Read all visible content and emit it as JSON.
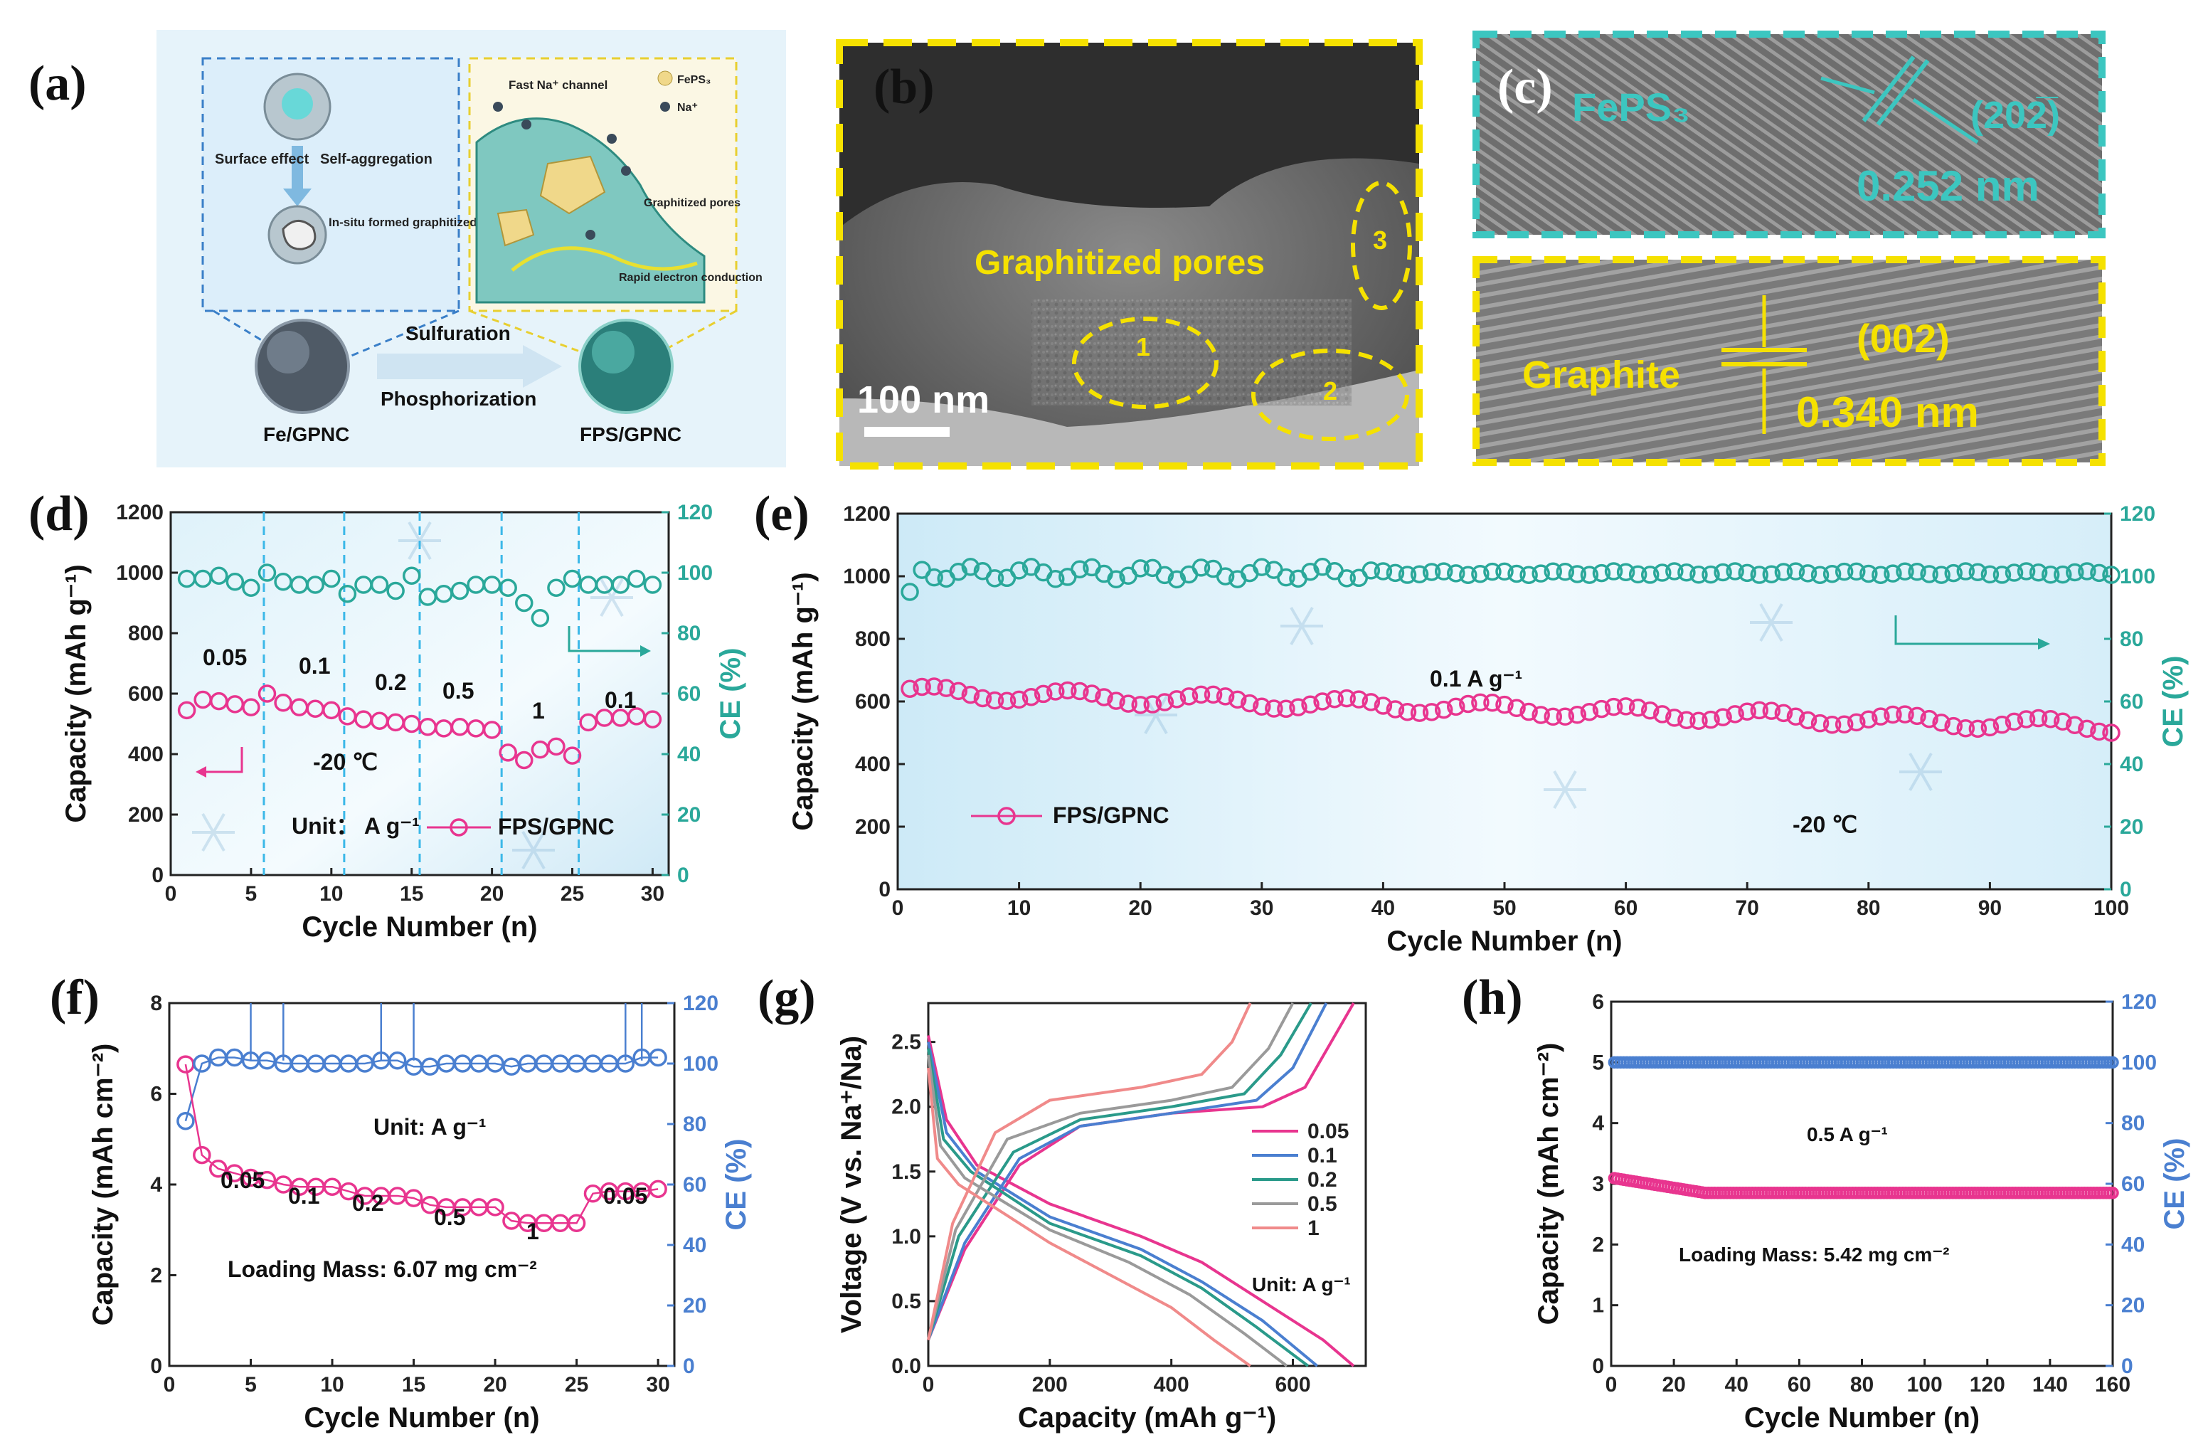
{
  "panel_labels": [
    "(a)",
    "(b)",
    "(c)",
    "(d)",
    "(e)",
    "(f)",
    "(g)",
    "(h)"
  ],
  "schematic": {
    "left_box": {
      "surface_effect": "Surface effect",
      "self_aggregation": "Self-aggregation",
      "in_situ": "In-situ formed graphitized pores"
    },
    "right_box": {
      "fast_channel": "Fast Na⁺ channel",
      "legend_feps3": "FePS₃",
      "legend_na": "Na⁺",
      "graphitized_pores": "Graphitized pores",
      "rapid_conduction": "Rapid electron conduction"
    },
    "arrow_top": "Sulfuration",
    "arrow_bottom": "Phosphorization",
    "left_label": "Fe/GPNC",
    "right_label": "FPS/GPNC"
  },
  "tem_b": {
    "text": "Graphitized pores",
    "scale": "100 nm",
    "regions": [
      "1",
      "2",
      "3"
    ]
  },
  "hrtem_c": {
    "top": {
      "phase": "FePS₃",
      "plane": "(20̅₂̅)",
      "plane_display": "(202̅)",
      "spacing": "0.252 nm"
    },
    "bottom": {
      "phase": "Graphite",
      "plane": "(002)",
      "spacing": "0.340 nm"
    }
  },
  "colors": {
    "capacity": "#e8358f",
    "ce_teal": "#2aa89a",
    "ce_blue": "#4a7fd0",
    "dash_yellow": "#f5e100",
    "dash_teal": "#3cc6c0",
    "dash_cyan": "#3bb8e8"
  },
  "chart_data": [
    {
      "panel": "(d)",
      "type": "scatter",
      "xlabel": "Cycle Number (n)",
      "ylabel": "Capacity (mAh g⁻¹)",
      "y2label": "CE (%)",
      "xlim": [
        0,
        31
      ],
      "ylim": [
        0,
        1200
      ],
      "y2lim": [
        0,
        120
      ],
      "xticks": [
        "0",
        "5",
        "10",
        "15",
        "20",
        "25",
        "30"
      ],
      "yticks": [
        "0",
        "200",
        "400",
        "600",
        "800",
        "1000",
        "1200"
      ],
      "y2ticks": [
        "0",
        "20",
        "40",
        "60",
        "80",
        "100",
        "120"
      ],
      "annotations": [
        "0.05",
        "0.1",
        "0.2",
        "0.5",
        "1",
        "0.1",
        "-20 ℃",
        "Unit： A g⁻¹"
      ],
      "legend": "FPS/GPNC",
      "rate_boundaries": [
        5.8,
        10.8,
        15.5,
        20.6,
        25.4
      ],
      "series": [
        {
          "name": "FPS/GPNC",
          "axis": "left",
          "x": [
            1,
            2,
            3,
            4,
            5,
            6,
            7,
            8,
            9,
            10,
            11,
            12,
            13,
            14,
            15,
            16,
            17,
            18,
            19,
            20,
            21,
            22,
            23,
            24,
            25,
            26,
            27,
            28,
            29,
            30
          ],
          "values": [
            545,
            580,
            575,
            565,
            555,
            600,
            570,
            555,
            550,
            545,
            525,
            515,
            510,
            505,
            500,
            490,
            485,
            490,
            485,
            480,
            405,
            380,
            415,
            425,
            395,
            505,
            520,
            520,
            525,
            515
          ]
        },
        {
          "axis": "right",
          "x": [
            1,
            2,
            3,
            4,
            5,
            6,
            7,
            8,
            9,
            10,
            11,
            12,
            13,
            14,
            15,
            16,
            17,
            18,
            19,
            20,
            21,
            22,
            23,
            24,
            25,
            26,
            27,
            28,
            29,
            30
          ],
          "values": [
            98,
            98,
            99,
            97,
            95,
            100,
            97,
            96,
            96,
            98,
            93,
            96,
            96,
            94,
            99,
            92,
            93,
            94,
            96,
            96,
            95,
            90,
            85,
            95,
            98,
            96,
            96,
            96,
            98,
            96
          ]
        }
      ]
    },
    {
      "panel": "(e)",
      "type": "scatter",
      "xlabel": "Cycle Number (n)",
      "ylabel": "Capacity (mAh g⁻¹)",
      "y2label": "CE (%)",
      "xlim": [
        0,
        100
      ],
      "ylim": [
        0,
        1200
      ],
      "y2lim": [
        0,
        120
      ],
      "xticks": [
        "0",
        "10",
        "20",
        "30",
        "40",
        "50",
        "60",
        "70",
        "80",
        "90",
        "100"
      ],
      "yticks": [
        "0",
        "200",
        "400",
        "600",
        "800",
        "1000",
        "1200"
      ],
      "y2ticks": [
        "0",
        "20",
        "40",
        "60",
        "80",
        "100",
        "120"
      ],
      "annotations": [
        "0.1 A g⁻¹",
        "-20 ℃"
      ],
      "legend": "FPS/GPNC",
      "series": [
        {
          "name": "FPS/GPNC",
          "axis": "left",
          "x_start": 1,
          "x_end": 100,
          "start": 630,
          "end": 520
        },
        {
          "axis": "right",
          "x_start": 1,
          "x_end": 100,
          "start": 95,
          "end": 102
        }
      ]
    },
    {
      "panel": "(f)",
      "type": "scatter",
      "xlabel": "Cycle Number (n)",
      "ylabel": "Capacity (mAh cm⁻²)",
      "y2label": "CE (%)",
      "xlim": [
        0,
        31
      ],
      "ylim": [
        0,
        8
      ],
      "y2lim": [
        0,
        120
      ],
      "xticks": [
        "0",
        "5",
        "10",
        "15",
        "20",
        "25",
        "30"
      ],
      "yticks": [
        "0",
        "2",
        "4",
        "6",
        "8"
      ],
      "y2ticks": [
        "0",
        "20",
        "40",
        "60",
        "80",
        "100",
        "120"
      ],
      "annotations": [
        "Unit: A g⁻¹",
        "0.05",
        "0.1",
        "0.2",
        "0.5",
        "1",
        "0.05",
        "Loading Mass: 6.07 mg cm⁻²"
      ],
      "series": [
        {
          "axis": "left",
          "x": [
            1,
            2,
            3,
            4,
            5,
            6,
            7,
            8,
            9,
            10,
            11,
            12,
            13,
            14,
            15,
            16,
            17,
            18,
            19,
            20,
            21,
            22,
            23,
            24,
            25,
            26,
            27,
            28,
            29,
            30
          ],
          "values": [
            6.65,
            4.65,
            4.35,
            4.25,
            4.15,
            4.1,
            4.0,
            3.95,
            3.95,
            3.95,
            3.85,
            3.75,
            3.75,
            3.75,
            3.7,
            3.55,
            3.5,
            3.5,
            3.5,
            3.5,
            3.2,
            3.15,
            3.15,
            3.15,
            3.15,
            3.8,
            3.85,
            3.85,
            3.85,
            3.9
          ]
        },
        {
          "axis": "right",
          "x": [
            1,
            2,
            3,
            4,
            5,
            6,
            7,
            8,
            9,
            10,
            11,
            12,
            13,
            14,
            15,
            16,
            17,
            18,
            19,
            20,
            21,
            22,
            23,
            24,
            25,
            26,
            27,
            28,
            29,
            30
          ],
          "values": [
            81,
            100,
            102,
            102,
            101,
            101,
            100,
            100,
            100,
            100,
            100,
            100,
            101,
            101,
            99,
            99,
            100,
            100,
            100,
            100,
            99,
            100,
            100,
            100,
            100,
            100,
            100,
            100,
            102,
            102
          ]
        }
      ]
    },
    {
      "panel": "(g)",
      "type": "line",
      "xlabel": "Capacity (mAh g⁻¹)",
      "ylabel": "Voltage (V vs. Na⁺/Na)",
      "xlim": [
        0,
        720
      ],
      "ylim": [
        0,
        2.8
      ],
      "xticks": [
        "0",
        "200",
        "400",
        "600"
      ],
      "yticks": [
        "0.0",
        "0.5",
        "1.0",
        "1.5",
        "2.0",
        "2.5"
      ],
      "annotations": [
        "Unit: A g⁻¹"
      ],
      "series": [
        {
          "name": "0.05",
          "color": "#e8358f",
          "discharge": [
            [
              0,
              2.55
            ],
            [
              30,
              1.9
            ],
            [
              80,
              1.55
            ],
            [
              200,
              1.25
            ],
            [
              350,
              1.0
            ],
            [
              450,
              0.8
            ],
            [
              550,
              0.5
            ],
            [
              650,
              0.2
            ],
            [
              700,
              0.0
            ]
          ],
          "charge": [
            [
              0,
              0.2
            ],
            [
              60,
              0.9
            ],
            [
              150,
              1.55
            ],
            [
              250,
              1.85
            ],
            [
              400,
              1.95
            ],
            [
              550,
              2.0
            ],
            [
              620,
              2.15
            ],
            [
              700,
              2.8
            ]
          ]
        },
        {
          "name": "0.1",
          "color": "#4a7fd0",
          "discharge": [
            [
              0,
              2.5
            ],
            [
              30,
              1.8
            ],
            [
              80,
              1.5
            ],
            [
              200,
              1.15
            ],
            [
              350,
              0.9
            ],
            [
              450,
              0.65
            ],
            [
              550,
              0.35
            ],
            [
              640,
              0.0
            ]
          ],
          "charge": [
            [
              0,
              0.2
            ],
            [
              60,
              0.95
            ],
            [
              150,
              1.6
            ],
            [
              250,
              1.85
            ],
            [
              400,
              1.95
            ],
            [
              540,
              2.05
            ],
            [
              600,
              2.3
            ],
            [
              655,
              2.8
            ]
          ]
        },
        {
          "name": "0.2",
          "color": "#2a9a8a",
          "discharge": [
            [
              0,
              2.45
            ],
            [
              25,
              1.75
            ],
            [
              70,
              1.5
            ],
            [
              200,
              1.1
            ],
            [
              350,
              0.85
            ],
            [
              450,
              0.6
            ],
            [
              540,
              0.3
            ],
            [
              625,
              0.0
            ]
          ],
          "charge": [
            [
              0,
              0.2
            ],
            [
              50,
              1.0
            ],
            [
              140,
              1.65
            ],
            [
              250,
              1.9
            ],
            [
              400,
              2.0
            ],
            [
              520,
              2.1
            ],
            [
              580,
              2.4
            ],
            [
              630,
              2.8
            ]
          ]
        },
        {
          "name": "0.5",
          "color": "#9a9a9a",
          "discharge": [
            [
              0,
              2.4
            ],
            [
              20,
              1.7
            ],
            [
              60,
              1.45
            ],
            [
              200,
              1.05
            ],
            [
              330,
              0.8
            ],
            [
              430,
              0.55
            ],
            [
              520,
              0.25
            ],
            [
              590,
              0.0
            ]
          ],
          "charge": [
            [
              0,
              0.2
            ],
            [
              45,
              1.05
            ],
            [
              130,
              1.75
            ],
            [
              250,
              1.95
            ],
            [
              400,
              2.05
            ],
            [
              500,
              2.15
            ],
            [
              560,
              2.45
            ],
            [
              600,
              2.8
            ]
          ]
        },
        {
          "name": "1",
          "color": "#f08a8a",
          "discharge": [
            [
              0,
              2.3
            ],
            [
              15,
              1.6
            ],
            [
              50,
              1.4
            ],
            [
              200,
              0.95
            ],
            [
              300,
              0.7
            ],
            [
              400,
              0.45
            ],
            [
              470,
              0.2
            ],
            [
              530,
              0.0
            ]
          ],
          "charge": [
            [
              0,
              0.2
            ],
            [
              40,
              1.1
            ],
            [
              110,
              1.8
            ],
            [
              200,
              2.05
            ],
            [
              350,
              2.15
            ],
            [
              450,
              2.25
            ],
            [
              500,
              2.5
            ],
            [
              530,
              2.8
            ]
          ]
        }
      ]
    },
    {
      "panel": "(h)",
      "type": "scatter",
      "xlabel": "Cycle Number (n)",
      "ylabel": "Capacity (mAh cm⁻²)",
      "y2label": "CE (%)",
      "xlim": [
        0,
        160
      ],
      "ylim": [
        0,
        6
      ],
      "y2lim": [
        0,
        120
      ],
      "xticks": [
        "0",
        "20",
        "40",
        "60",
        "80",
        "100",
        "120",
        "140",
        "160"
      ],
      "yticks": [
        "0",
        "1",
        "2",
        "3",
        "4",
        "5",
        "6"
      ],
      "y2ticks": [
        "0",
        "20",
        "40",
        "60",
        "80",
        "100",
        "120"
      ],
      "annotations": [
        "0.5 A g⁻¹",
        "Loading Mass: 5.42 mg cm⁻²"
      ],
      "series": [
        {
          "axis": "left",
          "x_start": 1,
          "x_end": 160,
          "start": 3.1,
          "end": 2.85
        },
        {
          "axis": "right",
          "x_start": 1,
          "x_end": 160,
          "start": 100,
          "end": 100
        }
      ]
    }
  ]
}
